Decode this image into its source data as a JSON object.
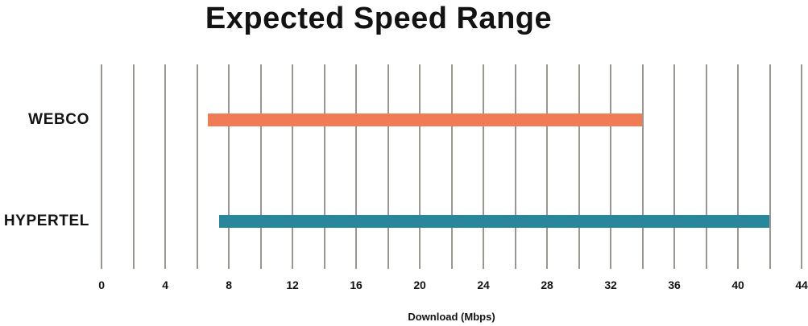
{
  "title": "Expected Speed Range",
  "chart_data": {
    "type": "bar",
    "subtype": "horizontal-range",
    "title": "Expected Speed Range",
    "xlabel": "Download (Mbps)",
    "ylabel": "",
    "categories": [
      "WEBCO",
      "HYPERTEL"
    ],
    "series": [
      {
        "name": "WEBCO",
        "min": 6.7,
        "max": 34,
        "color": "#f07c55"
      },
      {
        "name": "HYPERTEL",
        "min": 7.4,
        "max": 42,
        "color": "#28879b"
      }
    ],
    "xlim": [
      0,
      44
    ],
    "x_ticks": [
      0,
      4,
      8,
      12,
      16,
      20,
      24,
      28,
      32,
      36,
      40,
      44
    ],
    "grid": true,
    "grid_step": 2,
    "legend_position": "none",
    "colors": {
      "grid": "#9c9690",
      "text": "#131313",
      "background": "#ffffff"
    }
  }
}
